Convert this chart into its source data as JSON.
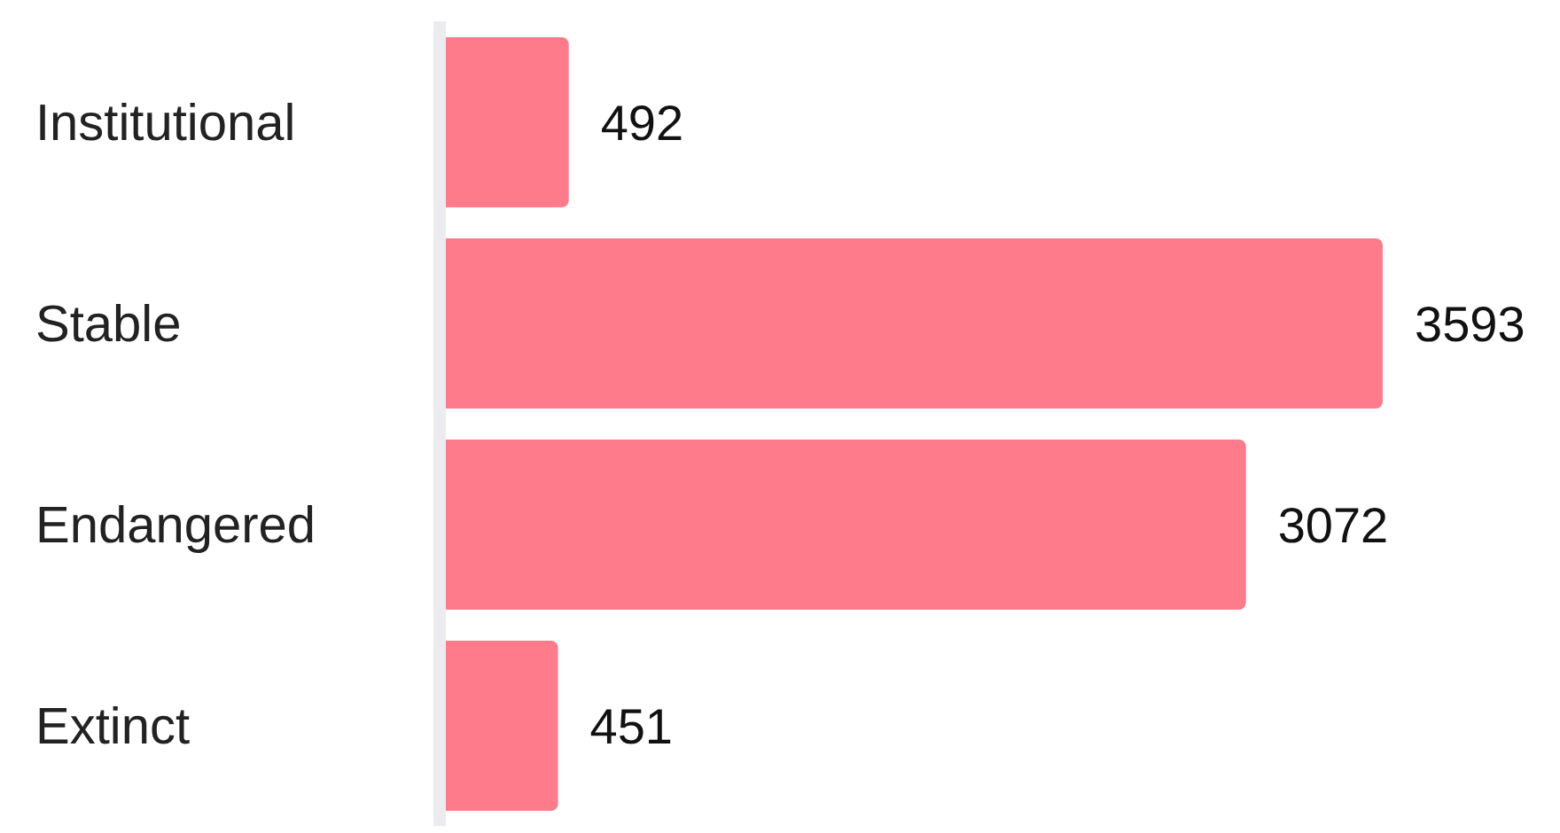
{
  "chart_data": {
    "type": "bar",
    "orientation": "horizontal",
    "categories": [
      "Institutional",
      "Stable",
      "Endangered",
      "Extinct"
    ],
    "values": [
      492,
      3593,
      3072,
      451
    ],
    "color": "#fd7b8b",
    "data_labels": true
  }
}
